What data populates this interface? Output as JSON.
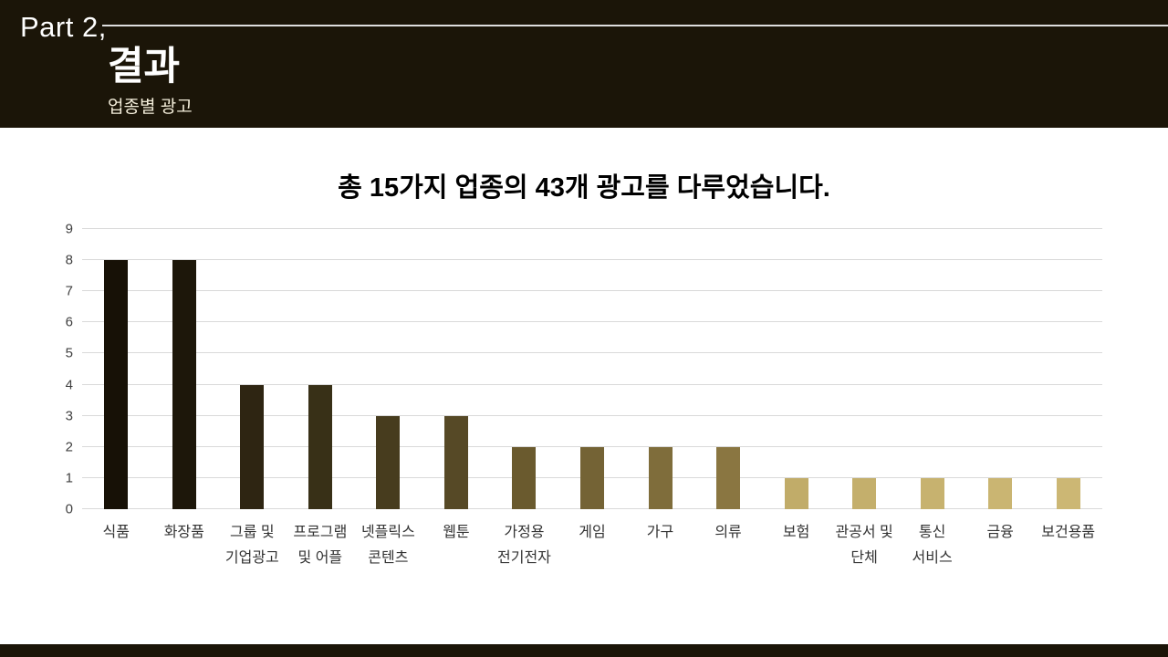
{
  "slide": {
    "part_label": "Part 2,",
    "title": "결과",
    "subtitle": "업종별 광고"
  },
  "colors": {
    "header_bg": "#1b1508",
    "footer_bg": "#1b1508",
    "gridline": "#d9d9d9",
    "title_text": "#000000",
    "header_text": "#ffffff",
    "accent_dark": "#171106",
    "accent_light": "#ccb774"
  },
  "chart_data": {
    "type": "bar",
    "title": "총 15가지 업종의 43개 광고를 다루었습니다.",
    "categories": [
      [
        "식품"
      ],
      [
        "화장품"
      ],
      [
        "그룹 및",
        "기업광고"
      ],
      [
        "프로그램",
        "및 어플"
      ],
      [
        "넷플릭스",
        "콘텐츠"
      ],
      [
        "웹툰"
      ],
      [
        "가정용",
        "전기전자"
      ],
      [
        "게임"
      ],
      [
        "가구"
      ],
      [
        "의류"
      ],
      [
        "보험"
      ],
      [
        "관공서 및",
        "단체"
      ],
      [
        "통신",
        "서비스"
      ],
      [
        "금융"
      ],
      [
        "보건용품"
      ]
    ],
    "values": [
      8,
      8,
      4,
      4,
      3,
      3,
      2,
      2,
      2,
      2,
      1,
      1,
      1,
      1,
      1
    ],
    "bar_colors": [
      "#171106",
      "#1d170a",
      "#2e2512",
      "#383017",
      "#473c1e",
      "#564926",
      "#6a5a2e",
      "#746335",
      "#7f6d3b",
      "#8a7641",
      "#c1ac69",
      "#c4af6c",
      "#c7b26f",
      "#cab572",
      "#ccb774"
    ],
    "xlabel": "",
    "ylabel": "",
    "ylim": [
      0,
      9
    ],
    "yticks": [
      0,
      1,
      2,
      3,
      4,
      5,
      6,
      7,
      8,
      9
    ],
    "grid": true,
    "legend": "none"
  }
}
